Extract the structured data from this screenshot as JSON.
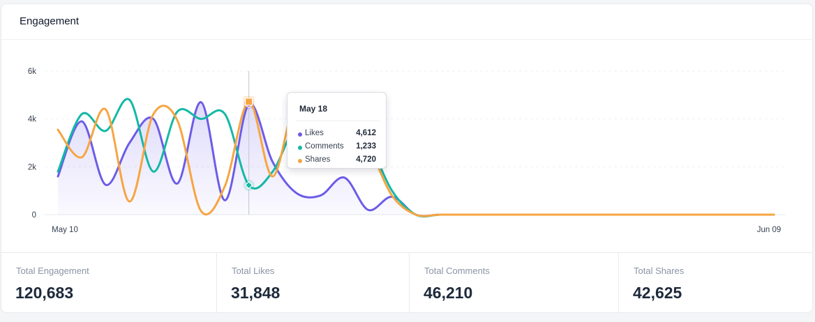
{
  "card": {
    "title": "Engagement"
  },
  "chart_data": {
    "type": "line",
    "x_start": "May 10",
    "x_end": "Jun 09",
    "x_tick_labels": [
      "May 10",
      "Jun 09"
    ],
    "y_ticks": [
      "0",
      "2k",
      "4k",
      "6k"
    ],
    "ylim": [
      0,
      6000
    ],
    "hover_date": "May 18",
    "series": [
      {
        "name": "Likes",
        "color": "#6c5ce7",
        "values": [
          1600,
          3900,
          1250,
          3000,
          4000,
          1300,
          4700,
          600,
          4612,
          2200,
          900,
          800,
          1550,
          200,
          750,
          0,
          0,
          0,
          0,
          0,
          0,
          0,
          0,
          0,
          0,
          0,
          0,
          0,
          0,
          0,
          0
        ]
      },
      {
        "name": "Comments",
        "color": "#14b8a6",
        "values": [
          1800,
          4200,
          3500,
          4800,
          1800,
          4300,
          4000,
          4200,
          1233,
          1800,
          3800,
          4000,
          3500,
          3000,
          1000,
          0,
          0,
          0,
          0,
          0,
          0,
          0,
          0,
          0,
          0,
          0,
          0,
          0,
          0,
          0,
          0
        ]
      },
      {
        "name": "Shares",
        "color": "#f7a541",
        "values": [
          3550,
          2400,
          4400,
          550,
          4200,
          3950,
          150,
          1200,
          4720,
          1600,
          4900,
          4000,
          3500,
          2800,
          800,
          0,
          0,
          0,
          0,
          0,
          0,
          0,
          0,
          0,
          0,
          0,
          0,
          0,
          0,
          0,
          0
        ]
      }
    ]
  },
  "tooltip": {
    "title": "May 18",
    "rows": [
      {
        "label": "Likes",
        "value": "4,612",
        "color": "#6c5ce7"
      },
      {
        "label": "Comments",
        "value": "1,233",
        "color": "#14b8a6"
      },
      {
        "label": "Shares",
        "value": "4,720",
        "color": "#f7a541"
      }
    ]
  },
  "stats": [
    {
      "label": "Total Engagement",
      "value": "120,683"
    },
    {
      "label": "Total Likes",
      "value": "31,848"
    },
    {
      "label": "Total Comments",
      "value": "46,210"
    },
    {
      "label": "Total Shares",
      "value": "42,625"
    }
  ]
}
